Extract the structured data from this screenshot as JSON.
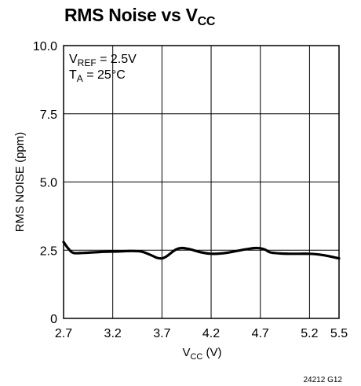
{
  "chart_data": {
    "type": "line",
    "title": {
      "main": "RMS Noise vs V",
      "sub": "CC"
    },
    "xlabel": {
      "main": "V",
      "sub": "CC",
      "rest": " (V)"
    },
    "ylabel": "RMS NOISE (ppm)",
    "xlim": [
      2.7,
      5.5
    ],
    "ylim": [
      0,
      10
    ],
    "x_tick_labels": [
      "2.7",
      "3.2",
      "3.7",
      "4.2",
      "4.7",
      "5.2",
      "5.5"
    ],
    "x_tick_values": [
      2.7,
      3.2,
      3.7,
      4.2,
      4.7,
      5.2,
      5.5
    ],
    "y_tick_labels": [
      "0",
      "2.5",
      "5.0",
      "7.5",
      "10.0"
    ],
    "y_tick_values": [
      0,
      2.5,
      5.0,
      7.5,
      10.0
    ],
    "grid": true,
    "annotations": [
      {
        "main": "V",
        "sub": "REF",
        "rest": " = 2.5V"
      },
      {
        "main": "T",
        "sub": "A",
        "rest": " = 25°C"
      }
    ],
    "series": [
      {
        "x": [
          2.7,
          2.75,
          2.8,
          2.9,
          3.0,
          3.1,
          3.2,
          3.3,
          3.4,
          3.5,
          3.6,
          3.65,
          3.7,
          3.75,
          3.8,
          3.85,
          3.9,
          3.95,
          4.0,
          4.1,
          4.2,
          4.3,
          4.4,
          4.5,
          4.6,
          4.65,
          4.7,
          4.75,
          4.8,
          4.9,
          5.0,
          5.1,
          5.2,
          5.3,
          5.4,
          5.5
        ],
        "y": [
          2.8,
          2.55,
          2.4,
          2.4,
          2.42,
          2.44,
          2.45,
          2.46,
          2.47,
          2.44,
          2.3,
          2.22,
          2.2,
          2.28,
          2.42,
          2.54,
          2.58,
          2.56,
          2.52,
          2.42,
          2.37,
          2.38,
          2.43,
          2.5,
          2.56,
          2.58,
          2.57,
          2.52,
          2.42,
          2.38,
          2.37,
          2.37,
          2.37,
          2.34,
          2.28,
          2.2
        ]
      }
    ]
  },
  "figure_id": "24212 G12"
}
